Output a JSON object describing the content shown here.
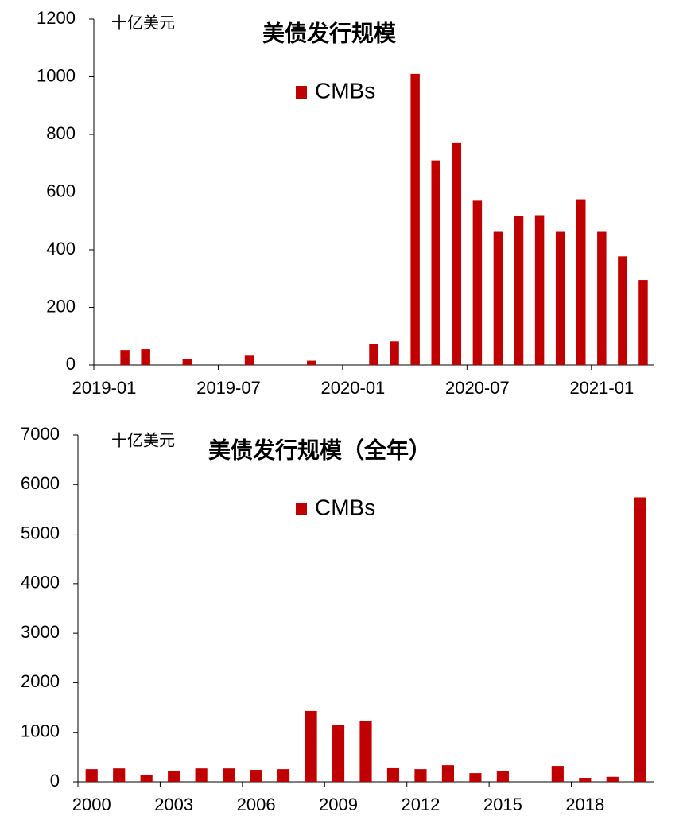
{
  "chart_data": [
    {
      "type": "bar",
      "title": "美债发行规模",
      "y_label": "十亿美元",
      "categories": [
        "2019-01",
        null,
        null,
        null,
        null,
        null,
        "2019-07",
        null,
        null,
        null,
        null,
        null,
        "2020-01",
        null,
        null,
        null,
        null,
        null,
        "2020-07",
        null,
        null,
        null,
        null,
        null,
        "2021-01",
        null,
        null
      ],
      "series": [
        {
          "name": "CMBs",
          "color": "#c00000",
          "values": [
            0,
            52,
            55,
            0,
            20,
            0,
            0,
            35,
            0,
            0,
            15,
            0,
            0,
            72,
            82,
            1010,
            710,
            770,
            570,
            462,
            517,
            520,
            462,
            575,
            462,
            377,
            295
          ]
        }
      ],
      "ylim": [
        0,
        1200
      ],
      "yticks": [
        0,
        200,
        400,
        600,
        800,
        1000,
        1200
      ]
    },
    {
      "type": "bar",
      "title": "美债发行规模（全年）",
      "y_label": "十亿美元",
      "categories": [
        "2000",
        null,
        null,
        "2003",
        null,
        null,
        "2006",
        null,
        null,
        "2009",
        null,
        null,
        "2012",
        null,
        null,
        "2015",
        null,
        null,
        "2018",
        null,
        null
      ],
      "series": [
        {
          "name": "CMBs",
          "color": "#c00000",
          "values": [
            255,
            270,
            145,
            225,
            270,
            270,
            240,
            255,
            1430,
            1140,
            1235,
            290,
            255,
            335,
            175,
            210,
            0,
            320,
            80,
            100,
            5740
          ]
        }
      ],
      "ylim": [
        0,
        7000
      ],
      "yticks": [
        0,
        1000,
        2000,
        3000,
        4000,
        5000,
        6000,
        7000
      ]
    }
  ]
}
